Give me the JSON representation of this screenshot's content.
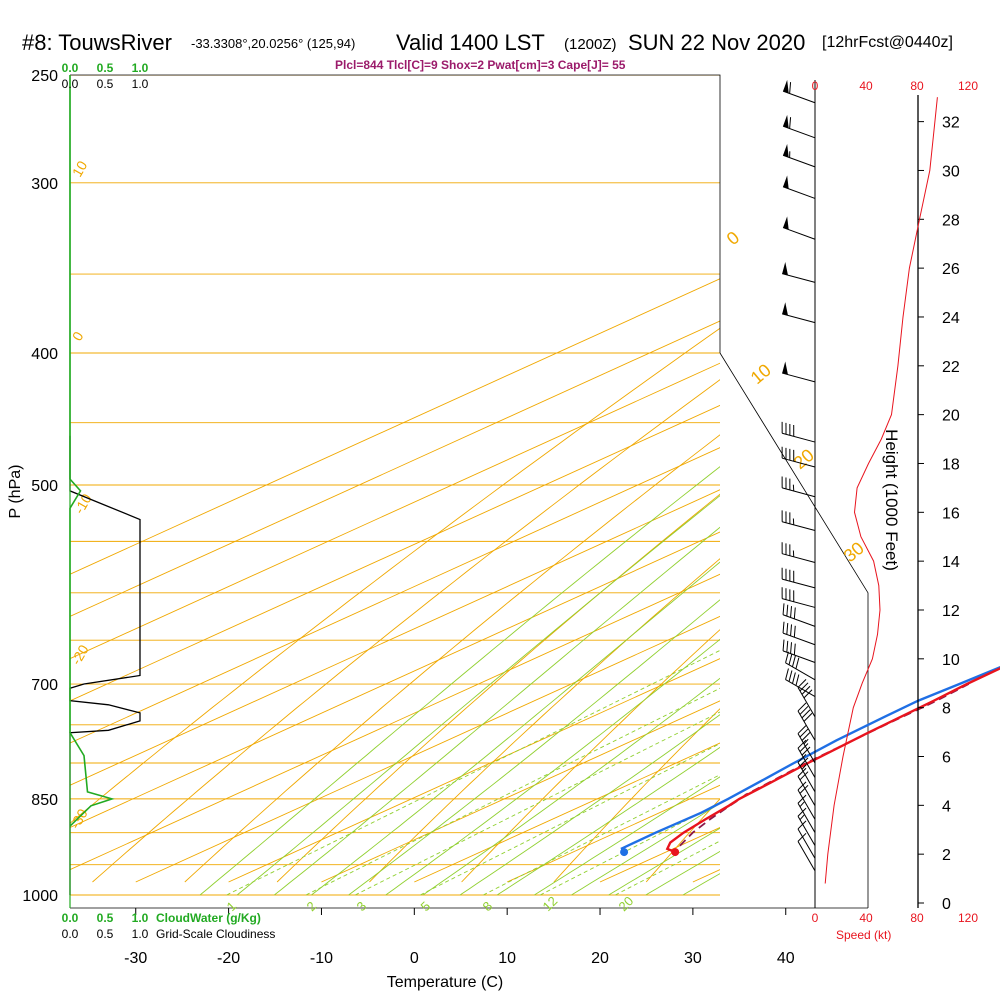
{
  "header": {
    "station": "#8: TouwsRiver",
    "coords": "-33.3308°,20.0256° (125,94)",
    "valid": "Valid 1400 LST",
    "zulu": "(1200Z)",
    "date": "SUN 22 Nov 2020",
    "forecast": "[12hrFcst@0440z]",
    "indices": "Plcl=844 Tlcl[C]=9 Shox=2 Pwat[cm]=3 Cape[J]= 55"
  },
  "chart_data": {
    "type": "skew-t",
    "xlabel": "Temperature (C)",
    "ylabel": "P (hPa)",
    "x_ticks": [
      -30,
      -20,
      -10,
      0,
      10,
      20,
      30,
      40
    ],
    "pressure_ticks": [
      250,
      300,
      400,
      500,
      700,
      850,
      1000
    ],
    "pressure_range": [
      250,
      1000
    ],
    "temp_range_bottom": [
      -34,
      36
    ],
    "isotherms": [
      -110,
      -100,
      -90,
      -80,
      -70,
      -60,
      -50,
      -40,
      -30,
      -20,
      -10,
      0,
      10,
      20,
      30,
      40,
      50
    ],
    "dry_adiabat_labels": [
      "10",
      "0",
      "-10",
      "-20",
      "-30",
      "-40"
    ],
    "moist_adiabat_labels": [
      "0",
      "10",
      "20",
      "30"
    ],
    "mixing_ratio_labels": [
      "1",
      "2",
      "3",
      "5",
      "8",
      "12",
      "20"
    ],
    "mixing_ratios": [
      1,
      2,
      3,
      5,
      8,
      12,
      20
    ],
    "series": [
      {
        "name": "Temperature",
        "color": "#e8141e",
        "points": [
          [
            930,
            21.0
          ],
          [
            925,
            19.4
          ],
          [
            915,
            18.2
          ],
          [
            900,
            17.3
          ],
          [
            880,
            16.5
          ],
          [
            860,
            15.8
          ],
          [
            850,
            15.3
          ],
          [
            830,
            14.9
          ],
          [
            800,
            14.2
          ],
          [
            760,
            13.5
          ],
          [
            720,
            13.0
          ],
          [
            700,
            12.6
          ],
          [
            670,
            12.4
          ],
          [
            640,
            11.7
          ],
          [
            600,
            10.5
          ],
          [
            560,
            9.1
          ],
          [
            520,
            7.6
          ],
          [
            500,
            6.8
          ],
          [
            470,
            5.3
          ],
          [
            440,
            3.7
          ],
          [
            400,
            1.3
          ],
          [
            370,
            -0.3
          ],
          [
            350,
            -1.7
          ],
          [
            320,
            -3.4
          ],
          [
            300,
            -4.6
          ],
          [
            280,
            -5.8
          ],
          [
            265,
            -6.7
          ]
        ]
      },
      {
        "name": "Dew point",
        "color": "#1f6fe5",
        "points": [
          [
            925,
            14.4
          ],
          [
            900,
            14.3
          ],
          [
            870,
            14.5
          ],
          [
            850,
            14.1
          ],
          [
            820,
            13.3
          ],
          [
            800,
            12.7
          ],
          [
            770,
            11.9
          ],
          [
            740,
            11.5
          ],
          [
            720,
            11.3
          ],
          [
            700,
            11.8
          ],
          [
            680,
            12.2
          ],
          [
            640,
            11.2
          ],
          [
            600,
            10.0
          ],
          [
            580,
            9.0
          ],
          [
            560,
            7.8
          ],
          [
            520,
            6.9
          ],
          [
            500,
            5.0
          ],
          [
            470,
            2.3
          ],
          [
            440,
            -0.5
          ],
          [
            420,
            -2.4
          ],
          [
            400,
            -5.0
          ],
          [
            370,
            -8.0
          ],
          [
            350,
            -10.5
          ],
          [
            320,
            -15.3
          ],
          [
            300,
            -19.0
          ],
          [
            290,
            -17.6
          ],
          [
            280,
            -16.9
          ],
          [
            265,
            -16.8
          ]
        ]
      },
      {
        "name": "Parcel",
        "color": "#8a1a4a",
        "points": [
          [
            920,
            20.0
          ],
          [
            900,
            18.3
          ],
          [
            880,
            17.0
          ],
          [
            860,
            15.9
          ],
          [
            850,
            15.4
          ],
          [
            844,
            15.0
          ],
          [
            820,
            14.5
          ],
          [
            800,
            14.0
          ],
          [
            780,
            13.8
          ],
          [
            750,
            13.5
          ],
          [
            720,
            13.3
          ],
          [
            700,
            12.8
          ]
        ]
      }
    ],
    "surface_temperature": {
      "p": 930,
      "t": 21.0
    },
    "surface_dewpoint": {
      "p": 930,
      "t": 15.5
    },
    "cloud_water_ticks": [
      "0.0",
      "0.5",
      "1.0"
    ],
    "cloudiness_ticks": [
      "0.0",
      "0.5",
      "1.0"
    ],
    "cloud_water_label": "CloudWater (g/Kg)",
    "cloudiness_label": "Grid-Scale Cloudiness",
    "cloudiness_profile": [
      [
        1000,
        0
      ],
      [
        760,
        0
      ],
      [
        757,
        0.55
      ],
      [
        745,
        1.0
      ],
      [
        735,
        1.0
      ],
      [
        725,
        0.55
      ],
      [
        720,
        0
      ],
      [
        705,
        0
      ],
      [
        700,
        0.2
      ],
      [
        690,
        1.0
      ],
      [
        530,
        1.0
      ],
      [
        505,
        0
      ],
      [
        500,
        0
      ],
      [
        460,
        0
      ]
    ],
    "cloud_water_profile": [
      [
        890,
        0
      ],
      [
        860,
        0.3
      ],
      [
        850,
        0.6
      ],
      [
        840,
        0.25
      ],
      [
        790,
        0.2
      ],
      [
        760,
        0
      ],
      [
        520,
        0
      ],
      [
        505,
        0.15
      ],
      [
        495,
        0
      ],
      [
        250,
        0
      ]
    ],
    "wind_speed_ticks": [
      "0",
      "40",
      "80",
      "120"
    ],
    "wind_speed_label": "Speed (kt)",
    "wind_speed_range": [
      0,
      120
    ],
    "height_ticks": [
      "0",
      "2",
      "4",
      "6",
      "8",
      "10",
      "12",
      "14",
      "16",
      "18",
      "20",
      "22",
      "24",
      "26",
      "28",
      "30",
      "32"
    ],
    "height_label": "Height (1000 Feet)",
    "height_range_kft": [
      0,
      32
    ],
    "wind_speed_profile": [
      [
        0.8,
        8
      ],
      [
        2,
        10
      ],
      [
        4,
        15
      ],
      [
        6,
        22
      ],
      [
        8,
        30
      ],
      [
        9,
        37
      ],
      [
        10,
        45
      ],
      [
        11,
        49
      ],
      [
        12,
        51
      ],
      [
        13,
        50
      ],
      [
        14,
        46
      ],
      [
        15,
        36
      ],
      [
        16,
        31
      ],
      [
        17,
        33
      ],
      [
        18,
        42
      ],
      [
        19,
        52
      ],
      [
        20,
        60
      ],
      [
        22,
        65
      ],
      [
        24,
        69
      ],
      [
        26,
        74
      ],
      [
        28,
        82
      ],
      [
        30,
        90
      ],
      [
        32,
        94
      ],
      [
        33,
        96
      ]
    ],
    "wind_barbs": [
      {
        "p": 262,
        "dir": 290,
        "spd": 60
      },
      {
        "p": 278,
        "dir": 290,
        "spd": 60
      },
      {
        "p": 292,
        "dir": 290,
        "spd": 55
      },
      {
        "p": 308,
        "dir": 290,
        "spd": 50
      },
      {
        "p": 330,
        "dir": 290,
        "spd": 50
      },
      {
        "p": 355,
        "dir": 285,
        "spd": 50
      },
      {
        "p": 380,
        "dir": 285,
        "spd": 50
      },
      {
        "p": 420,
        "dir": 285,
        "spd": 50
      },
      {
        "p": 465,
        "dir": 285,
        "spd": 40
      },
      {
        "p": 485,
        "dir": 285,
        "spd": 40
      },
      {
        "p": 510,
        "dir": 285,
        "spd": 35
      },
      {
        "p": 540,
        "dir": 285,
        "spd": 35
      },
      {
        "p": 570,
        "dir": 285,
        "spd": 35
      },
      {
        "p": 595,
        "dir": 285,
        "spd": 40
      },
      {
        "p": 615,
        "dir": 285,
        "spd": 40
      },
      {
        "p": 635,
        "dir": 290,
        "spd": 40
      },
      {
        "p": 655,
        "dir": 290,
        "spd": 40
      },
      {
        "p": 675,
        "dir": 290,
        "spd": 40
      },
      {
        "p": 695,
        "dir": 300,
        "spd": 40
      },
      {
        "p": 715,
        "dir": 300,
        "spd": 40
      },
      {
        "p": 740,
        "dir": 330,
        "spd": 40
      },
      {
        "p": 770,
        "dir": 330,
        "spd": 40
      },
      {
        "p": 800,
        "dir": 330,
        "spd": 35
      },
      {
        "p": 820,
        "dir": 330,
        "spd": 30
      },
      {
        "p": 840,
        "dir": 330,
        "spd": 25
      },
      {
        "p": 860,
        "dir": 330,
        "spd": 20
      },
      {
        "p": 880,
        "dir": 330,
        "spd": 20
      },
      {
        "p": 900,
        "dir": 330,
        "spd": 15
      },
      {
        "p": 920,
        "dir": 330,
        "spd": 15
      },
      {
        "p": 940,
        "dir": 330,
        "spd": 10
      },
      {
        "p": 960,
        "dir": 330,
        "spd": 10
      }
    ],
    "colors": {
      "isobar": "#f0a800",
      "isotherm": "#f0a800",
      "dry_adiabat": "#f0a800",
      "moist_adiabat": "#90d030",
      "mixing_ratio": "#90d030",
      "cloud_water": "#22aa22",
      "wind": "#e8141e"
    }
  }
}
